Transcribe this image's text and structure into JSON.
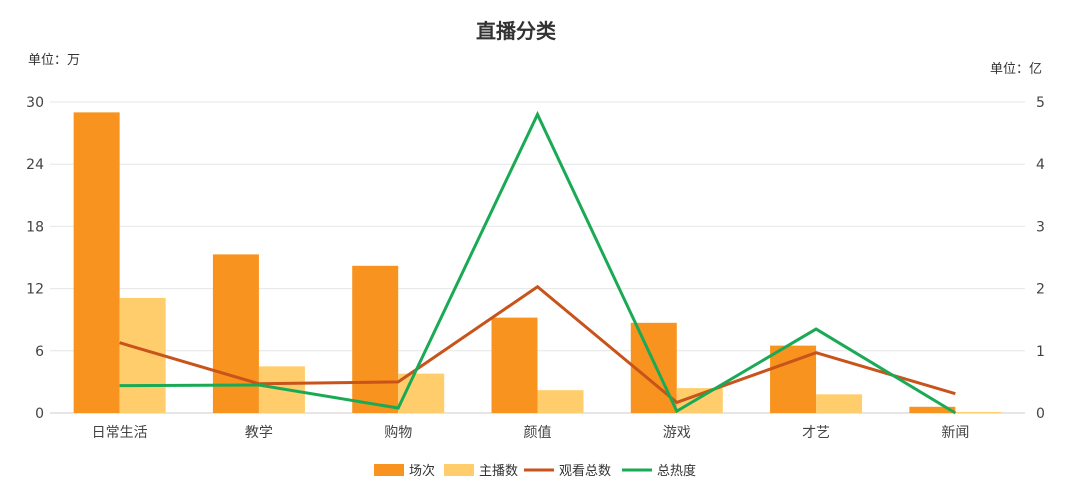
{
  "chart_data": {
    "type": "bar",
    "title": "直播分类",
    "left_unit": "单位：万",
    "right_unit": "单位：亿",
    "categories": [
      "日常生活",
      "教学",
      "购物",
      "颜值",
      "游戏",
      "才艺",
      "新闻"
    ],
    "left_axis": {
      "min": 0,
      "max": 30,
      "ticks": [
        "0",
        "6",
        "12",
        "18",
        "24",
        "30"
      ]
    },
    "right_axis": {
      "min": 0,
      "max": 5,
      "ticks": [
        "0",
        "1",
        "2",
        "3",
        "4",
        "5"
      ]
    },
    "grid": true,
    "legend_position": "bottom-center",
    "series": [
      {
        "name": "场次",
        "type": "bar",
        "axis": "left",
        "color": "#F7931E",
        "values": [
          29.0,
          15.3,
          14.2,
          9.2,
          8.7,
          6.5,
          0.6
        ]
      },
      {
        "name": "主播数",
        "type": "bar",
        "axis": "left",
        "color": "#FFCD6B",
        "values": [
          11.1,
          4.5,
          3.8,
          2.2,
          2.4,
          1.8,
          0.1
        ]
      },
      {
        "name": "观看总数",
        "type": "line",
        "axis": "right",
        "color": "#C8531B",
        "values": [
          1.13,
          0.47,
          0.5,
          2.03,
          0.17,
          0.97,
          0.31
        ]
      },
      {
        "name": "总热度",
        "type": "line",
        "axis": "right",
        "color": "#1AAA55",
        "values": [
          0.44,
          0.45,
          0.08,
          4.8,
          0.03,
          1.35,
          0.0
        ]
      }
    ]
  }
}
